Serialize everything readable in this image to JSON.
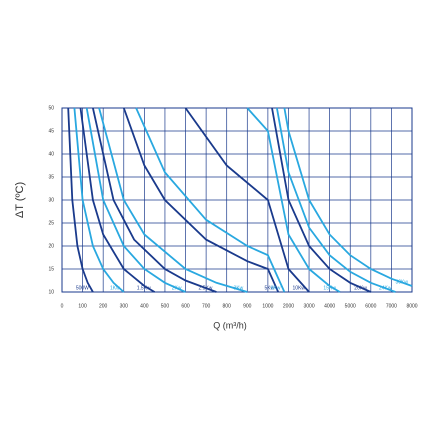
{
  "chart_data": {
    "type": "line",
    "x_label": "Q (m³/h)",
    "y_label": "ΔT (ºC)",
    "xticks": [
      0,
      100,
      200,
      300,
      400,
      500,
      600,
      700,
      800,
      900,
      1000,
      2000,
      3000,
      4000,
      5000,
      6000,
      7000,
      8000
    ],
    "xlim": [
      0,
      8000
    ],
    "ylim": [
      10,
      50
    ],
    "yticks": [
      10,
      15,
      20,
      25,
      30,
      35,
      40,
      45,
      50
    ],
    "grid": true,
    "series": [
      {
        "name": "500W",
        "color": "#1a3a8c",
        "x": [
          30,
          50,
          75,
          100,
          125,
          150
        ],
        "values": [
          50,
          30,
          20,
          15,
          12,
          10
        ]
      },
      {
        "name": "1Kw",
        "color": "#29a8e0",
        "x": [
          60,
          100,
          150,
          200,
          250,
          300
        ],
        "values": [
          50,
          30,
          20,
          15,
          12,
          10
        ]
      },
      {
        "name": "1.5Kw",
        "color": "#1a3a8c",
        "x": [
          90,
          150,
          200,
          300,
          400,
          450
        ],
        "values": [
          50,
          30,
          22.5,
          15,
          11.3,
          10
        ]
      },
      {
        "name": "2Kw",
        "color": "#29a8e0",
        "x": [
          120,
          200,
          300,
          400,
          500,
          600
        ],
        "values": [
          50,
          30,
          20,
          15,
          12,
          10
        ]
      },
      {
        "name": "2.5Kw",
        "color": "#1a3a8c",
        "x": [
          150,
          250,
          350,
          500,
          600,
          750
        ],
        "values": [
          50,
          30,
          21.4,
          15,
          12.5,
          10
        ]
      },
      {
        "name": "3Kw",
        "color": "#29a8e0",
        "x": [
          180,
          300,
          400,
          600,
          750,
          900
        ],
        "values": [
          50,
          30,
          22.5,
          15,
          12,
          10
        ]
      },
      {
        "name": "5Kw",
        "color": "#1a3a8c",
        "x": [
          300,
          400,
          500,
          700,
          900,
          1000,
          1500
        ],
        "values": [
          50,
          37.5,
          30,
          21.4,
          16.7,
          15,
          10
        ]
      },
      {
        "name": "6Kw",
        "color": "#29a8e0",
        "x": [
          360,
          500,
          700,
          900,
          1000,
          1800
        ],
        "values": [
          50,
          36,
          25.7,
          20,
          18,
          10
        ]
      },
      {
        "name": "10Kw",
        "color": "#1a3a8c",
        "x": [
          600,
          800,
          1000,
          2000,
          3000
        ],
        "values": [
          50,
          37.5,
          30,
          15,
          10
        ]
      },
      {
        "name": "15Kw",
        "color": "#29a8e0",
        "x": [
          900,
          1000,
          2000,
          3000,
          4000,
          4500
        ],
        "values": [
          50,
          45,
          22.5,
          15,
          11.3,
          10
        ]
      },
      {
        "name": "20Kw",
        "color": "#1a3a8c",
        "x": [
          1200,
          2000,
          3000,
          4000,
          5000,
          6000
        ],
        "values": [
          50,
          30,
          20,
          15,
          12,
          10
        ]
      },
      {
        "name": "24Kw",
        "color": "#29a8e0",
        "x": [
          1440,
          2000,
          3000,
          4000,
          5000,
          6000,
          7200
        ],
        "values": [
          50,
          36,
          24,
          18,
          14.4,
          12,
          10
        ]
      },
      {
        "name": "30Kw",
        "color": "#29a8e0",
        "x": [
          1800,
          2000,
          3000,
          4000,
          5000,
          6000,
          7000,
          8000
        ],
        "values": [
          50,
          45,
          30,
          22.5,
          18,
          15,
          12.9,
          11.3
        ]
      }
    ]
  }
}
